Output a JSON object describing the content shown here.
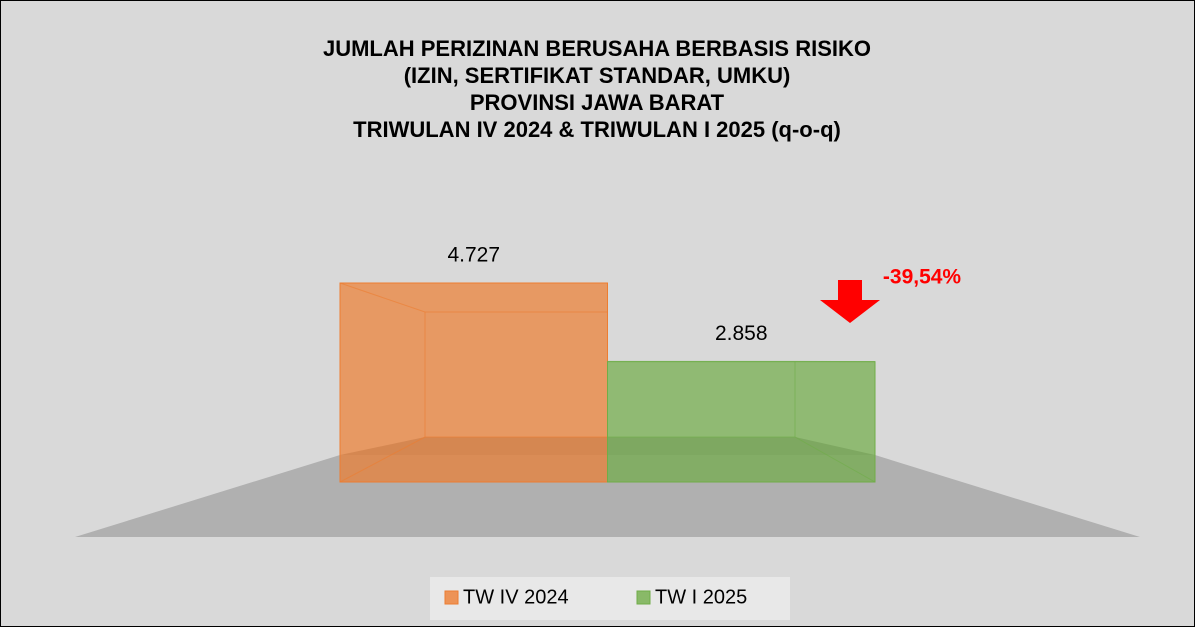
{
  "chart_data": {
    "type": "bar",
    "title": [
      "JUMLAH PERIZINAN BERUSAHA BERBASIS RISIKO",
      "(IZIN, SERTIFIKAT STANDAR, UMKU)",
      "PROVINSI JAWA BARAT",
      "TRIWULAN IV 2024 & TRIWULAN I 2025 (q-o-q)"
    ],
    "series": [
      {
        "name": "TW IV 2024",
        "color": "#ed7d31",
        "values": [
          4727
        ],
        "value_labels": [
          "4.727"
        ]
      },
      {
        "name": "TW I 2025",
        "color": "#70ad47",
        "values": [
          2858
        ],
        "value_labels": [
          "2.858"
        ]
      }
    ],
    "annotation": "-39,54%",
    "legend": "bottom"
  }
}
